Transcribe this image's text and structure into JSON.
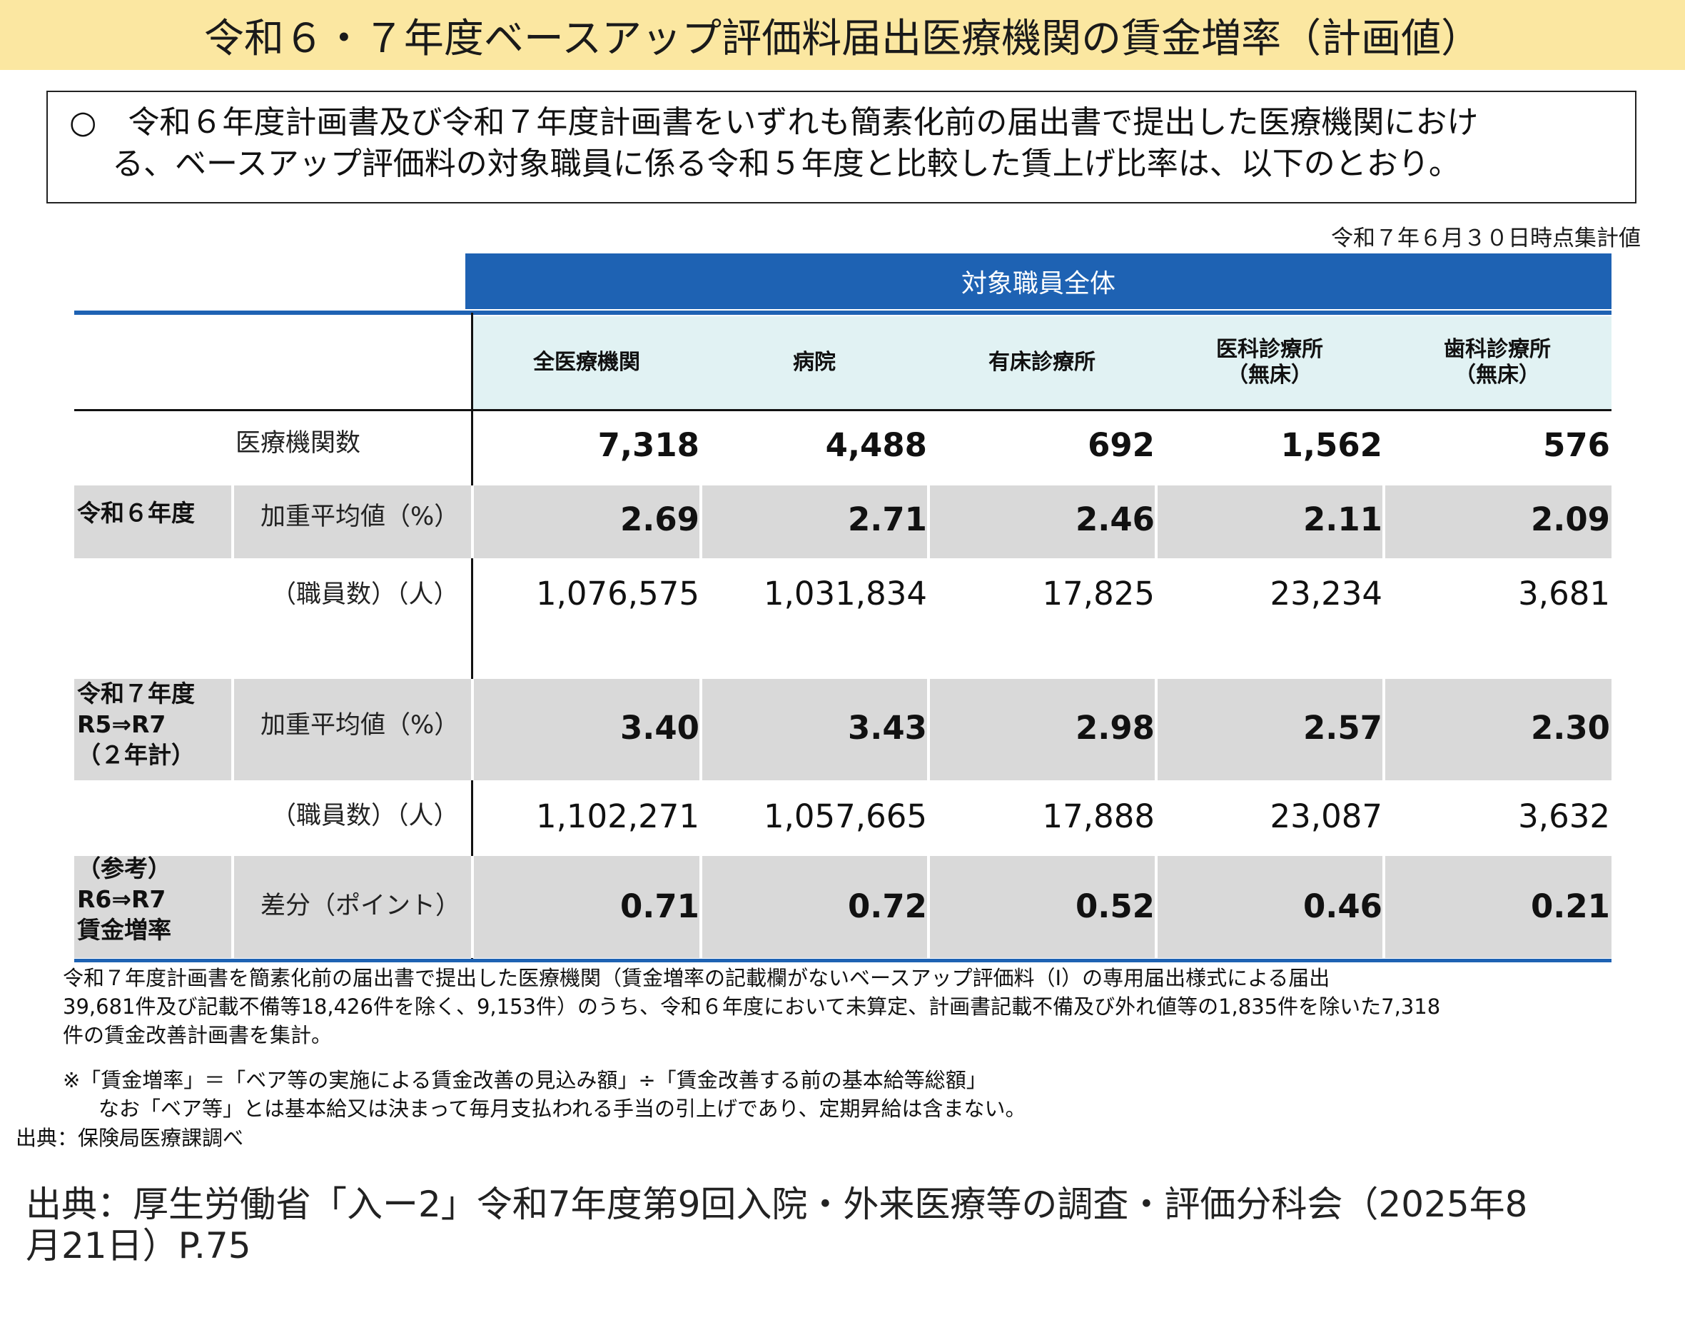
{
  "title": "令和６・７年度ベースアップ評価料届出医療機関の賃金増率（計画値）",
  "intro": {
    "line1": "○　令和６年度計画書及び令和７年度計画書をいずれも簡素化前の届出書で提出した医療機関におけ",
    "line2": "る、ベースアップ評価料の対象職員に係る令和５年度と比較した賃上げ比率は、以下のとおり。"
  },
  "as_of": "令和７年６月３０日時点集計値",
  "table": {
    "group_header": "対象職員全体",
    "columns": [
      {
        "line1": "全医療機関",
        "line2": ""
      },
      {
        "line1": "病院",
        "line2": ""
      },
      {
        "line1": "有床診療所",
        "line2": ""
      },
      {
        "line1": "医科診療所",
        "line2": "（無床）"
      },
      {
        "line1": "歯科診療所",
        "line2": "（無床）"
      }
    ],
    "institutions_label": "医療機関数",
    "institutions": [
      "7,318",
      "4,488",
      "692",
      "1,562",
      "576"
    ],
    "r6": {
      "group_label": "令和６年度",
      "avg_label": "加重平均値（%）",
      "avg": [
        "2.69",
        "2.71",
        "2.46",
        "2.11",
        "2.09"
      ],
      "staff_label": "（職員数）（人）",
      "staff": [
        "1,076,575",
        "1,031,834",
        "17,825",
        "23,234",
        "3,681"
      ]
    },
    "r7": {
      "group_label_1": "令和７年度",
      "group_label_2": "R5⇒R7",
      "group_label_3": "（２年計）",
      "avg_label": "加重平均値（%）",
      "avg": [
        "3.40",
        "3.43",
        "2.98",
        "2.57",
        "2.30"
      ],
      "staff_label": "（職員数）（人）",
      "staff": [
        "1,102,271",
        "1,057,665",
        "17,888",
        "23,087",
        "3,632"
      ]
    },
    "diff": {
      "group_label_1": "（参考）",
      "group_label_2": "R6⇒R7",
      "group_label_3": "賃金増率",
      "label": "差分（ポイント）",
      "values": [
        "0.71",
        "0.72",
        "0.52",
        "0.46",
        "0.21"
      ]
    }
  },
  "notes": {
    "line1": "令和７年度計画書を簡素化前の届出書で提出した医療機関（賃金増率の記載欄がないベースアップ評価料（Ⅰ）の専用届出様式による届出",
    "line2": "39,681件及び記載不備等18,426件を除く、9,153件）のうち、令和６年度において未算定、計画書記載不備及び外れ値等の1,835件を除いた7,318",
    "line3": "件の賃金改善計画書を集計。"
  },
  "formula": {
    "line1": "※「賃金増率」＝「ベア等の実施による賃金改善の見込み額」÷「賃金改善する前の基本給等総額」",
    "line2": "なお「ベア等」とは基本給又は決まって毎月支払われる手当の引上げであり、定期昇給は含まない。"
  },
  "survey_source": "出典：保険局医療課調べ",
  "citation": {
    "line1": "出典：厚生労働省「入ー2」令和7年度第9回入院・外来医療等の調査・評価分科会（2025年8",
    "line2": "月21日）P.75"
  },
  "colors": {
    "title_bg": "#fbe7a1",
    "header_blue": "#1e62b3",
    "col_head_bg": "#e1f2f3",
    "row_gray": "#d9d9d9"
  }
}
